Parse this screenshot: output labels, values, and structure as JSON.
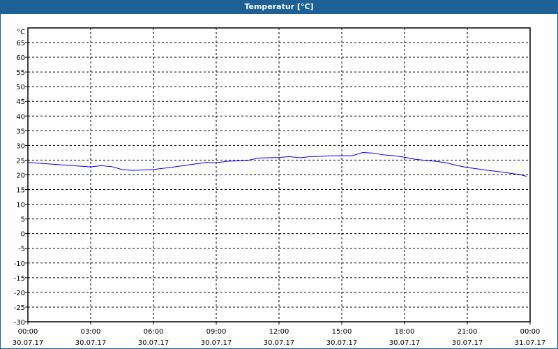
{
  "window": {
    "title": "Temperatur [°C]"
  },
  "chart_data": {
    "type": "line",
    "title": "Temperatur [°C]",
    "ylabel": "°C",
    "ylim": [
      -30,
      70
    ],
    "yticks": [
      65,
      60,
      55,
      50,
      45,
      40,
      35,
      30,
      25,
      20,
      15,
      10,
      5,
      0,
      -5,
      -10,
      -15,
      -20,
      -25,
      -30
    ],
    "xlim_hours": [
      0,
      24
    ],
    "xticks": [
      {
        "time": "00:00",
        "date": "30.07.17"
      },
      {
        "time": "03:00",
        "date": "30.07.17"
      },
      {
        "time": "06:00",
        "date": "30.07.17"
      },
      {
        "time": "09:00",
        "date": "30.07.17"
      },
      {
        "time": "12:00",
        "date": "30.07.17"
      },
      {
        "time": "15:00",
        "date": "30.07.17"
      },
      {
        "time": "18:00",
        "date": "30.07.17"
      },
      {
        "time": "21:00",
        "date": "30.07.17"
      },
      {
        "time": "00:00",
        "date": "31.07.17"
      }
    ],
    "grid": true,
    "line_color": "#0000ff",
    "series": [
      {
        "x": [
          "00:00",
          "01:00",
          "02:00",
          "03:00",
          "03:30",
          "04:00",
          "04:30",
          "05:00",
          "06:00",
          "07:00",
          "08:00",
          "08:30",
          "09:00",
          "09:30",
          "10:30",
          "11:00",
          "12:00",
          "12:30",
          "13:00",
          "13:30",
          "14:00",
          "14:30",
          "15:00",
          "15:30",
          "16:00",
          "16:30",
          "17:00",
          "17:30",
          "18:00",
          "18:30",
          "19:00",
          "19:30",
          "20:00",
          "20:30",
          "21:00",
          "21:30",
          "22:00",
          "22:30",
          "23:00",
          "23:30",
          "23:50"
        ],
        "values": [
          24.2,
          23.7,
          23.2,
          22.7,
          23.1,
          22.8,
          21.8,
          21.5,
          21.8,
          22.7,
          23.7,
          24.2,
          24.1,
          24.6,
          24.9,
          25.7,
          25.9,
          26.2,
          25.8,
          26.2,
          26.3,
          26.5,
          26.5,
          26.5,
          27.6,
          27.4,
          26.8,
          26.5,
          26.0,
          25.3,
          24.9,
          24.6,
          24.1,
          23.2,
          22.5,
          22.0,
          21.5,
          21.1,
          20.6,
          20.1,
          19.5
        ]
      }
    ]
  }
}
